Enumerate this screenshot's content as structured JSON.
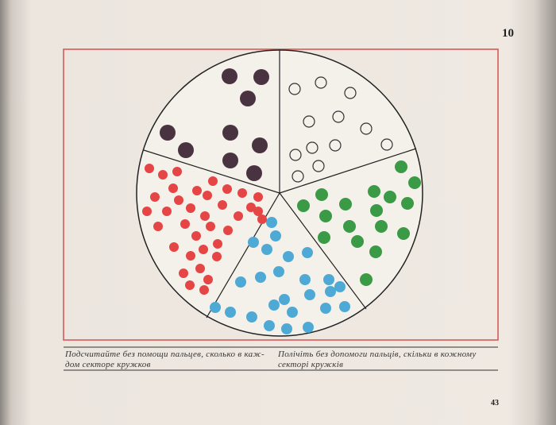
{
  "page": {
    "number_top": "10",
    "number_bottom": "43"
  },
  "captions": [
    {
      "lines": [
        "Подсчитайте без помощи пальцев, сколько в каж-",
        "дом секторе кружков"
      ]
    },
    {
      "lines": [
        "Полічіть без допомоги пальців, скільки в кожному",
        "секторі кружків"
      ]
    }
  ]
}
